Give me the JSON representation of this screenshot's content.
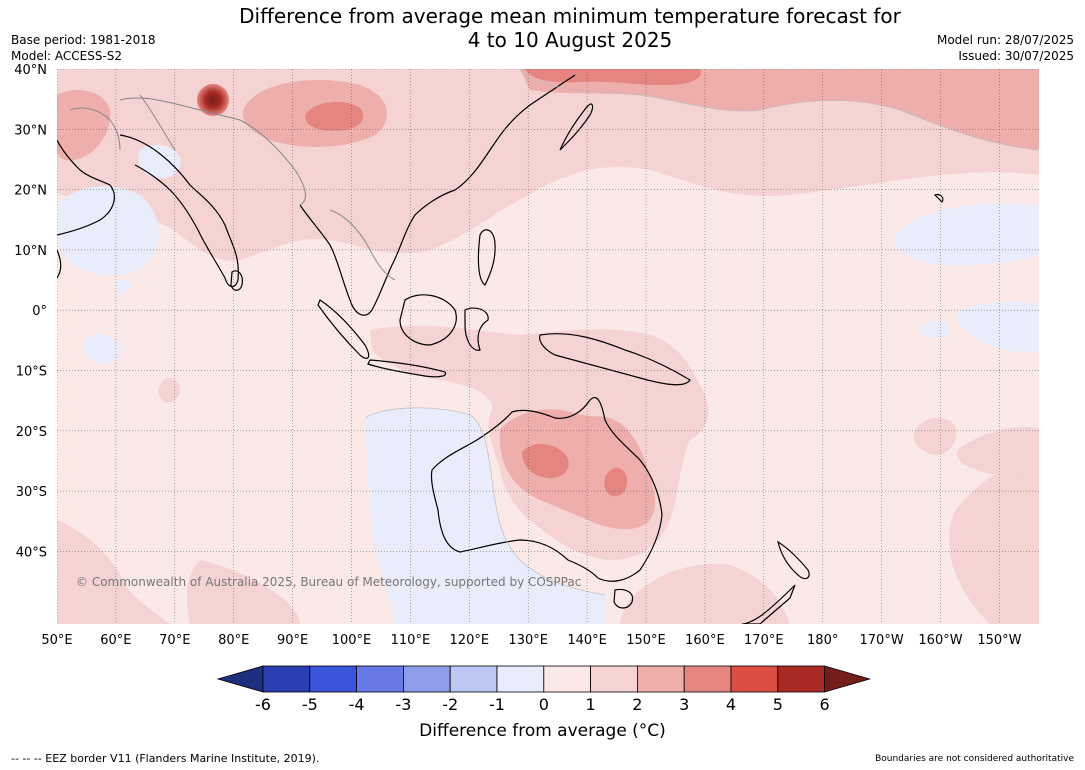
{
  "title_line1": "Difference from average mean minimum temperature forecast for",
  "title_line2": "4 to 10 August 2025",
  "meta": {
    "base_period": "Base period: 1981-2018",
    "model": "Model: ACCESS-S2",
    "model_run": "Model run: 28/07/2025",
    "issued": "Issued: 30/07/2025"
  },
  "map": {
    "lat_labels": [
      "40°N",
      "30°N",
      "20°N",
      "10°N",
      "0°",
      "10°S",
      "20°S",
      "30°S",
      "40°S"
    ],
    "lon_labels": [
      "50°E",
      "60°E",
      "70°E",
      "80°E",
      "90°E",
      "100°E",
      "110°E",
      "120°E",
      "130°E",
      "140°E",
      "150°E",
      "160°E",
      "170°E",
      "180°",
      "170°W",
      "160°W",
      "150°W"
    ],
    "copyright": "© Commonwealth of Australia 2025, Bureau of Meteorology, supported by COSPPac",
    "colors": {
      "c_n6": "#1f2f80",
      "c_n5": "#2b3fb4",
      "c_n4": "#3b54dc",
      "c_n3": "#6679e4",
      "c_n2": "#8f9cea",
      "c_n1": "#bec6f2",
      "c_0": "#e8ecfb",
      "c_1": "#fbe9e8",
      "c_2": "#f5d3d2",
      "c_3": "#edaeac",
      "c_4": "#e58580",
      "c_5": "#dc4d42",
      "c_6": "#a92a24",
      "c_over": "#741e19"
    }
  },
  "colorbar": {
    "ticks": [
      "-6",
      "-5",
      "-4",
      "-3",
      "-2",
      "-1",
      "0",
      "1",
      "2",
      "3",
      "4",
      "5",
      "6"
    ],
    "label": "Difference from average (°C)"
  },
  "footer": {
    "eez": "--  --  -- EEZ border V11 (Flanders Marine Institute, 2019).",
    "boundaries": "Boundaries are not considered authoritative"
  }
}
